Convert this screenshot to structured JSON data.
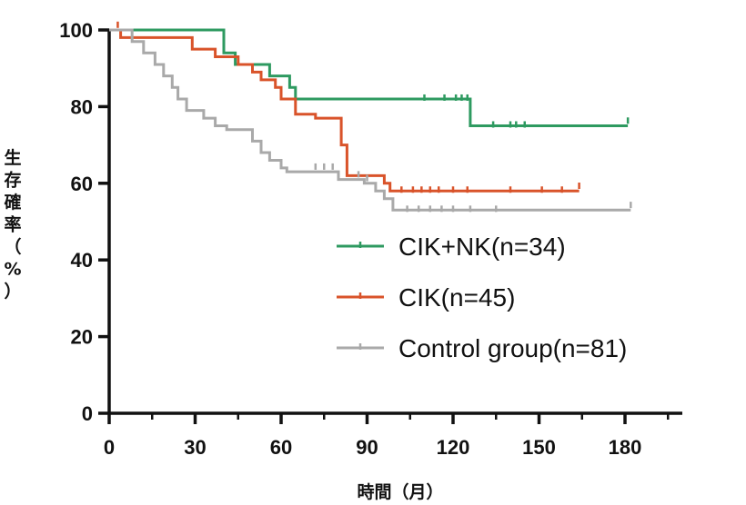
{
  "chart_data": {
    "type": "line",
    "subtype": "kaplan-meier step curve with censor marks",
    "xlabel": "時間（月）",
    "ylabel": "生存確率（%）",
    "xlim": [
      0,
      200
    ],
    "ylim": [
      0,
      100
    ],
    "x_ticks": [
      0,
      30,
      60,
      90,
      120,
      150,
      180
    ],
    "y_ticks": [
      0,
      20,
      40,
      60,
      80,
      100
    ],
    "grid": false,
    "legend_position": "center-right",
    "series": [
      {
        "name": "CIK+NK(n=34)",
        "color": "#2e9a60",
        "steps": [
          [
            0,
            100
          ],
          [
            40,
            100
          ],
          [
            40,
            94
          ],
          [
            44,
            94
          ],
          [
            44,
            91
          ],
          [
            56,
            91
          ],
          [
            56,
            88
          ],
          [
            63,
            88
          ],
          [
            63,
            85
          ],
          [
            65,
            85
          ],
          [
            65,
            82
          ],
          [
            126,
            82
          ],
          [
            126,
            75
          ],
          [
            181,
            75
          ]
        ],
        "censored": [
          [
            110,
            82
          ],
          [
            117,
            82
          ],
          [
            121,
            82
          ],
          [
            123,
            82
          ],
          [
            125,
            82
          ],
          [
            134,
            75
          ],
          [
            140,
            75
          ],
          [
            142,
            75
          ],
          [
            145,
            75
          ],
          [
            181,
            76
          ]
        ]
      },
      {
        "name": "CIK(n=45)",
        "color": "#d9532a",
        "steps": [
          [
            0,
            100
          ],
          [
            4,
            100
          ],
          [
            4,
            98
          ],
          [
            29,
            98
          ],
          [
            29,
            95
          ],
          [
            37,
            95
          ],
          [
            37,
            93
          ],
          [
            45,
            93
          ],
          [
            45,
            91
          ],
          [
            50,
            91
          ],
          [
            50,
            89
          ],
          [
            53,
            89
          ],
          [
            53,
            87
          ],
          [
            58,
            87
          ],
          [
            58,
            85
          ],
          [
            60,
            85
          ],
          [
            60,
            82
          ],
          [
            65,
            82
          ],
          [
            65,
            78
          ],
          [
            72,
            78
          ],
          [
            72,
            77
          ],
          [
            81,
            77
          ],
          [
            81,
            70
          ],
          [
            83,
            70
          ],
          [
            83,
            62
          ],
          [
            96,
            62
          ],
          [
            96,
            60
          ],
          [
            98,
            60
          ],
          [
            98,
            58
          ],
          [
            164,
            58
          ]
        ],
        "censored": [
          [
            3,
            101
          ],
          [
            102,
            58
          ],
          [
            106,
            58
          ],
          [
            109,
            58
          ],
          [
            112,
            58
          ],
          [
            115,
            58
          ],
          [
            120,
            58
          ],
          [
            125,
            58
          ],
          [
            140,
            58
          ],
          [
            151,
            58
          ],
          [
            158,
            58
          ],
          [
            164,
            59
          ]
        ]
      },
      {
        "name": "Control group(n=81)",
        "color": "#a9a9a9",
        "steps": [
          [
            0,
            100
          ],
          [
            8,
            100
          ],
          [
            8,
            97
          ],
          [
            12,
            97
          ],
          [
            12,
            94
          ],
          [
            16,
            94
          ],
          [
            16,
            91
          ],
          [
            19,
            91
          ],
          [
            19,
            88
          ],
          [
            22,
            88
          ],
          [
            22,
            85
          ],
          [
            24,
            85
          ],
          [
            24,
            82
          ],
          [
            27,
            82
          ],
          [
            27,
            79
          ],
          [
            33,
            79
          ],
          [
            33,
            77
          ],
          [
            37,
            77
          ],
          [
            37,
            75
          ],
          [
            41,
            75
          ],
          [
            41,
            74
          ],
          [
            50,
            74
          ],
          [
            50,
            71
          ],
          [
            53,
            71
          ],
          [
            53,
            68
          ],
          [
            56,
            68
          ],
          [
            56,
            66
          ],
          [
            60,
            66
          ],
          [
            60,
            64
          ],
          [
            62,
            64
          ],
          [
            62,
            63
          ],
          [
            80,
            63
          ],
          [
            80,
            61
          ],
          [
            89,
            61
          ],
          [
            89,
            60
          ],
          [
            93,
            60
          ],
          [
            93,
            58
          ],
          [
            96,
            58
          ],
          [
            96,
            56
          ],
          [
            99,
            56
          ],
          [
            99,
            53
          ],
          [
            182,
            53
          ]
        ],
        "censored": [
          [
            72,
            64
          ],
          [
            75,
            64
          ],
          [
            78,
            64
          ],
          [
            87,
            62
          ],
          [
            90,
            61
          ],
          [
            104,
            53
          ],
          [
            108,
            53
          ],
          [
            112,
            53
          ],
          [
            116,
            53
          ],
          [
            120,
            53
          ],
          [
            126,
            53
          ],
          [
            135,
            53
          ],
          [
            182,
            54
          ]
        ]
      }
    ]
  }
}
